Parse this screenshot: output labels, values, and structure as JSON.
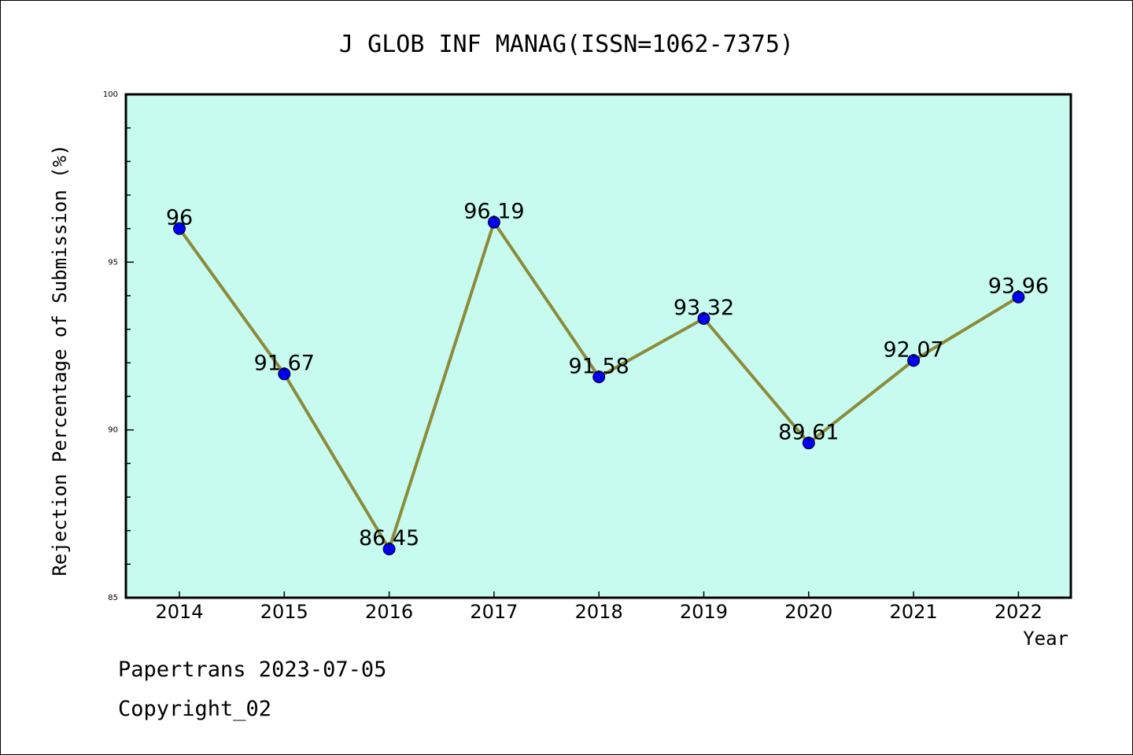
{
  "chart_data": {
    "type": "line",
    "title": "J GLOB INF MANAG(ISSN=1062-7375)",
    "xlabel": "Year",
    "ylabel": "Rejection Percentage of Submission (%)",
    "categories": [
      "2014",
      "2015",
      "2016",
      "2017",
      "2018",
      "2019",
      "2020",
      "2021",
      "2022"
    ],
    "values": [
      96,
      91.67,
      86.45,
      96.19,
      91.58,
      93.32,
      89.61,
      92.07,
      93.96
    ],
    "data_labels": [
      "96",
      "91.67",
      "86.45",
      "96.19",
      "91.58",
      "93.32",
      "89.61",
      "92.07",
      "93.96"
    ],
    "ylim": [
      85,
      100
    ],
    "yticks": [
      "85",
      "90",
      "95",
      "100"
    ],
    "grid": false,
    "colors": {
      "plot_background": "#c8fbef",
      "line": "#8b8b3a",
      "marker": "#0000ee"
    }
  },
  "footer": {
    "line1": "Papertrans 2023-07-05",
    "line2": "Copyright_02"
  }
}
